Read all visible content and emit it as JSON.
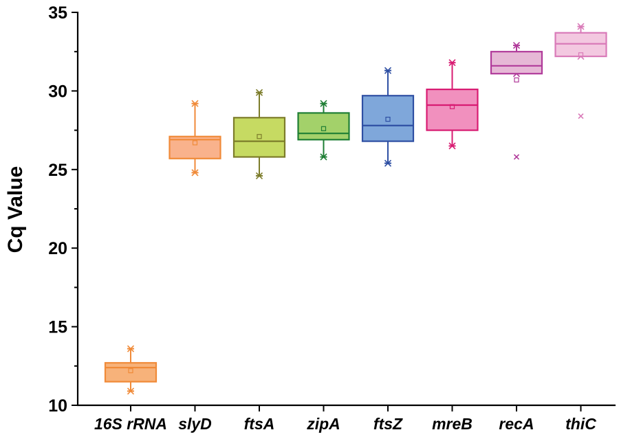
{
  "chart_data": {
    "type": "box",
    "title": "",
    "xlabel": "",
    "ylabel": "Cq Value",
    "ylim": [
      10,
      35
    ],
    "yticks": [
      10,
      15,
      20,
      25,
      30,
      35
    ],
    "ytick_labels": [
      "10",
      "15",
      "20",
      "25",
      "30",
      "35"
    ],
    "grid": false,
    "categories": [
      "16S rRNA",
      "slyD",
      "ftsA",
      "zipA",
      "ftsZ",
      "mreB",
      "recA",
      "thiC"
    ],
    "boxes": [
      {
        "name": "16S rRNA",
        "q1": 11.5,
        "median": 12.4,
        "q3": 12.7,
        "mean": 12.2,
        "whisker_low": 10.9,
        "whisker_high": 13.6,
        "outliers": [],
        "color": "#F08A38",
        "fill": "#F7B27A"
      },
      {
        "name": "slyD",
        "q1": 25.7,
        "median": 26.9,
        "q3": 27.1,
        "mean": 26.7,
        "whisker_low": 24.8,
        "whisker_high": 29.2,
        "outliers": [],
        "color": "#F08A38",
        "fill": "#F9B28C"
      },
      {
        "name": "ftsA",
        "q1": 25.8,
        "median": 26.8,
        "q3": 28.3,
        "mean": 27.1,
        "whisker_low": 24.6,
        "whisker_high": 29.9,
        "outliers": [],
        "color": "#7C7C2A",
        "fill": "#C6DA62"
      },
      {
        "name": "zipA",
        "q1": 26.9,
        "median": 27.3,
        "q3": 28.6,
        "mean": 27.6,
        "whisker_low": 25.8,
        "whisker_high": 29.2,
        "outliers": [],
        "color": "#1E7E34",
        "fill": "#A3D16A"
      },
      {
        "name": "ftsZ",
        "q1": 26.8,
        "median": 27.8,
        "q3": 29.7,
        "mean": 28.2,
        "whisker_low": 25.4,
        "whisker_high": 31.3,
        "outliers": [],
        "color": "#2E4FA3",
        "fill": "#7FA7DA"
      },
      {
        "name": "mreB",
        "q1": 27.5,
        "median": 29.1,
        "q3": 30.1,
        "mean": 29.0,
        "whisker_low": 26.5,
        "whisker_high": 31.8,
        "outliers": [],
        "color": "#D81B72",
        "fill": "#F190BE"
      },
      {
        "name": "recA",
        "q1": 31.1,
        "median": 31.6,
        "q3": 32.5,
        "mean": 30.7,
        "whisker_low": 31.1,
        "whisker_high": 32.9,
        "outliers": [
          25.8
        ],
        "color": "#B03A9A",
        "fill": "#E6B8D6"
      },
      {
        "name": "thiC",
        "q1": 32.2,
        "median": 33.0,
        "q3": 33.7,
        "mean": 32.3,
        "whisker_low": 32.2,
        "whisker_high": 34.1,
        "outliers": [
          28.4
        ],
        "color": "#D97AB8",
        "fill": "#F3C8E0"
      }
    ]
  }
}
